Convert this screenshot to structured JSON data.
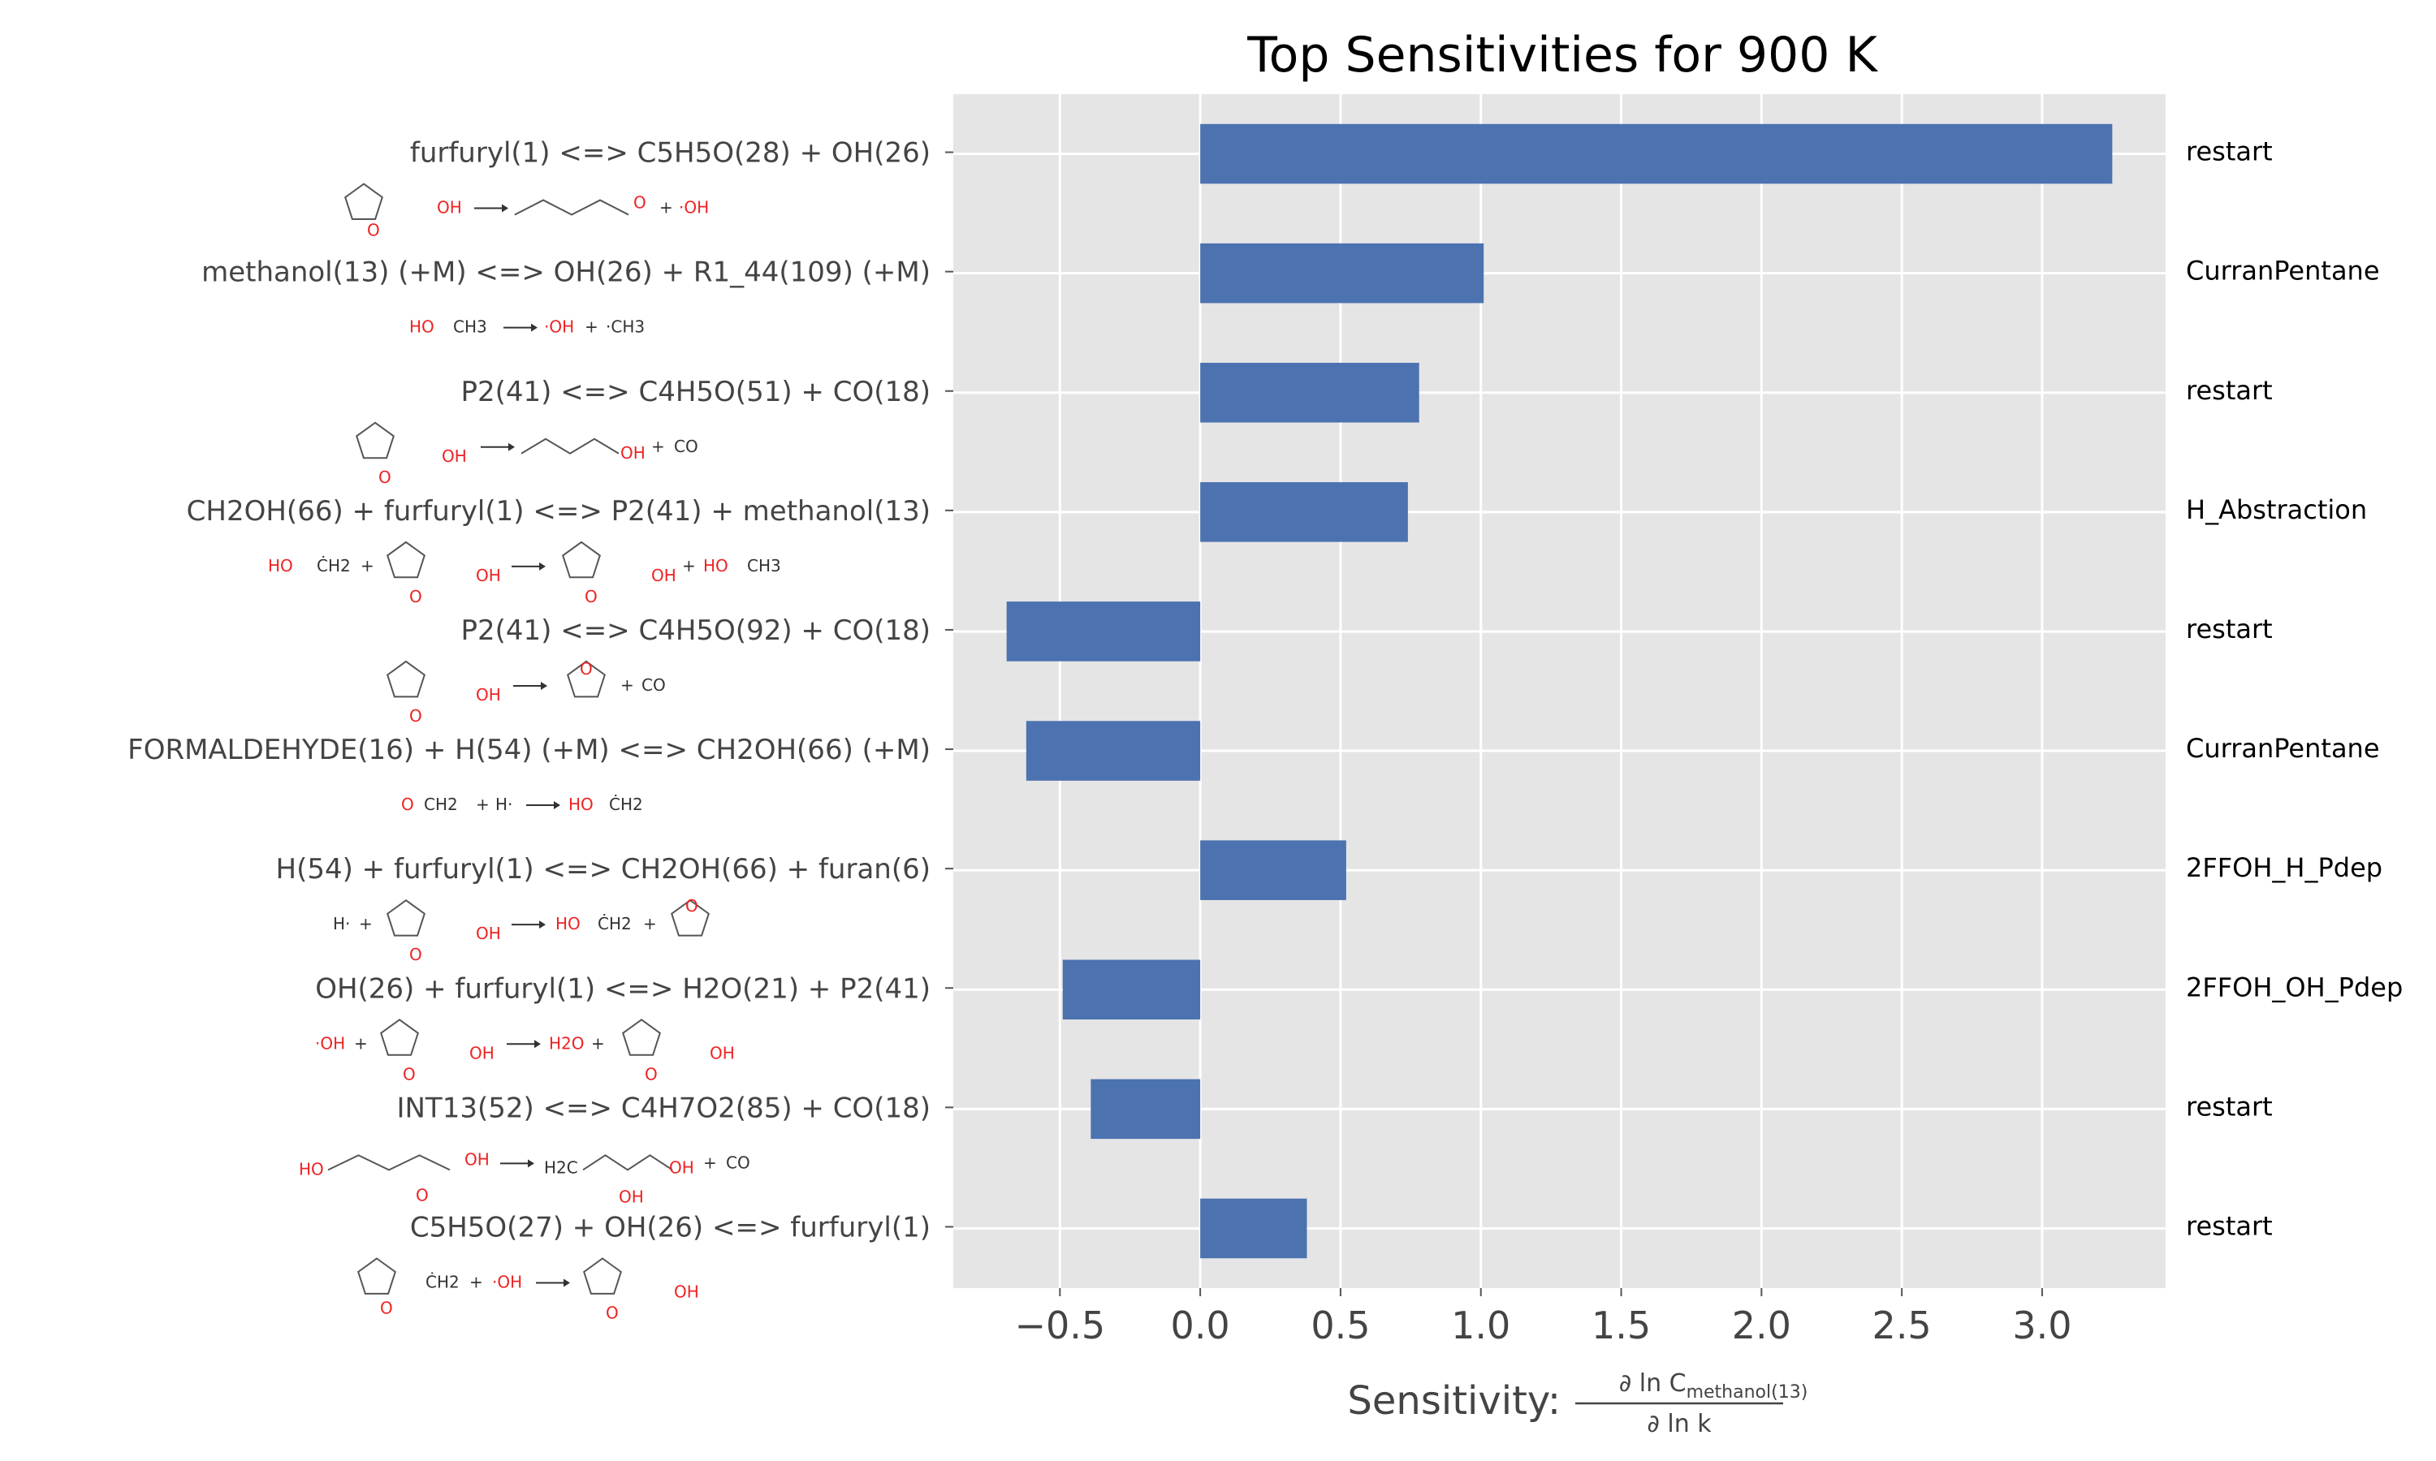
{
  "chart_data": {
    "type": "bar",
    "orientation": "horizontal",
    "title": "Top Sensitivities for 900 K",
    "xlabel_prefix": "Sensitivity:",
    "xlabel_fraction": {
      "numerator": "∂ ln C",
      "numerator_subscript": "methanol(13)",
      "denominator": "∂ ln k"
    },
    "xlim": [
      -0.88,
      3.44
    ],
    "xticks": [
      -0.5,
      0.0,
      0.5,
      1.0,
      1.5,
      2.0,
      2.5,
      3.0
    ],
    "xtick_labels": [
      "−0.5",
      "0.0",
      "0.5",
      "1.0",
      "1.5",
      "2.0",
      "2.5",
      "3.0"
    ],
    "grid": true,
    "background_color": "#e5e5e5",
    "bar_color": "#4c72b0",
    "categories": [
      "furfuryl(1) <=> C5H5O(28) + OH(26)",
      "methanol(13) (+M) <=> OH(26) + R1_44(109) (+M)",
      "P2(41) <=> C4H5O(51) + CO(18)",
      "CH2OH(66) + furfuryl(1) <=> P2(41) + methanol(13)",
      "P2(41) <=> C4H5O(92) + CO(18)",
      "FORMALDEHYDE(16) + H(54) (+M) <=> CH2OH(66) (+M)",
      "H(54) + furfuryl(1) <=> CH2OH(66) + furan(6)",
      "OH(26) + furfuryl(1) <=> H2O(21) + P2(41)",
      "INT13(52) <=> C4H7O2(85) + CO(18)",
      "C5H5O(27) + OH(26) <=> furfuryl(1)"
    ],
    "values": [
      3.25,
      1.01,
      0.78,
      0.74,
      -0.69,
      -0.62,
      0.52,
      -0.49,
      -0.39,
      0.38
    ],
    "families": [
      "restart",
      "CurranPentane",
      "restart",
      "H_Abstraction",
      "restart",
      "CurranPentane",
      "2FFOH_H_Pdep",
      "2FFOH_OH_Pdep",
      "restart",
      "restart"
    ],
    "structure_labels": [
      [
        "OH",
        "O",
        "+",
        "·OH",
        "O"
      ],
      [
        "HO",
        "CH3",
        "·OH",
        "+",
        "·CH3"
      ],
      [
        "OH",
        "O",
        "OH",
        "+",
        "CO",
        "O"
      ],
      [
        "HO",
        "ĊH2",
        "+",
        "OH",
        "O",
        "OH",
        "O",
        "+",
        "HO",
        "CH3"
      ],
      [
        "OH",
        "O",
        "O",
        "+",
        "CO",
        "O"
      ],
      [
        "O",
        "CH2",
        "+",
        "H·",
        "HO",
        "ĊH2"
      ],
      [
        "H·",
        "+",
        "OH",
        "O",
        "HO",
        "ĊH2",
        "+",
        "O"
      ],
      [
        "·OH",
        "+",
        "OH",
        "O",
        "H2O",
        "+",
        "OH",
        "O"
      ],
      [
        "HO",
        "OH",
        "O",
        "H2C",
        "OH",
        "OH",
        "+",
        "CO"
      ],
      [
        "ĊH2",
        "O",
        "+",
        "·OH",
        "OH",
        "O"
      ]
    ]
  }
}
